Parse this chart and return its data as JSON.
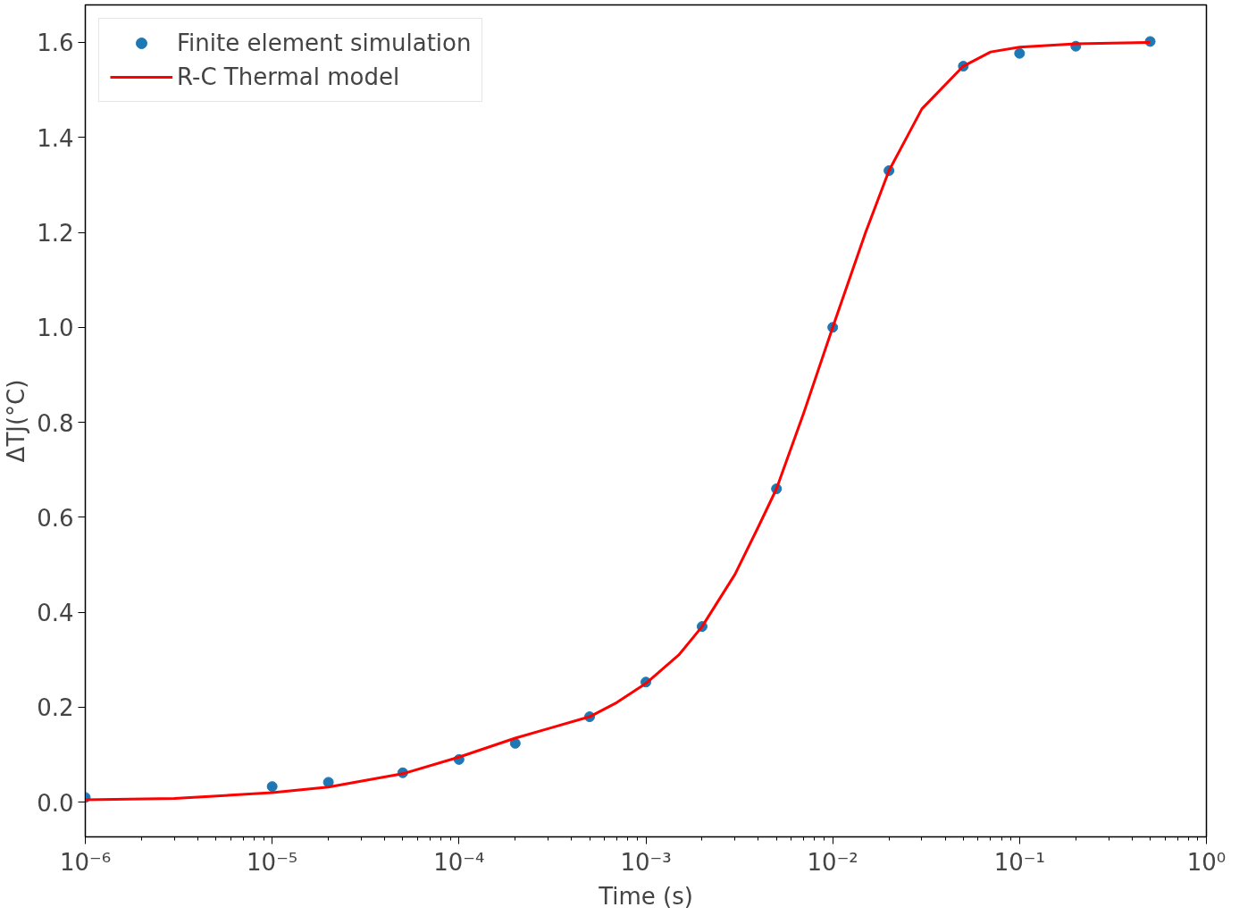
{
  "chart_data": {
    "type": "line",
    "xlabel": "Time (s)",
    "ylabel": "ΔTJ(°C)",
    "log": "x",
    "grid": false,
    "legend": "top left",
    "xlim": [
      1e-06,
      1.0
    ],
    "ylim": [
      -0.073,
      1.679
    ],
    "xticks": [
      {
        "value": 1e-06,
        "label": "10⁻⁶"
      },
      {
        "value": 1e-05,
        "label": "10⁻⁵"
      },
      {
        "value": 0.0001,
        "label": "10⁻⁴"
      },
      {
        "value": 0.001,
        "label": "10⁻³"
      },
      {
        "value": 0.01,
        "label": "10⁻²"
      },
      {
        "value": 0.1,
        "label": "10⁻¹"
      },
      {
        "value": 1.0,
        "label": "10⁰"
      }
    ],
    "yticks": [
      {
        "value": 0.0,
        "label": "0.0"
      },
      {
        "value": 0.2,
        "label": "0.2"
      },
      {
        "value": 0.4,
        "label": "0.4"
      },
      {
        "value": 0.6,
        "label": "0.6"
      },
      {
        "value": 0.8,
        "label": "0.8"
      },
      {
        "value": 1.0,
        "label": "1.0"
      },
      {
        "value": 1.2,
        "label": "1.2"
      },
      {
        "value": 1.4,
        "label": "1.4"
      },
      {
        "value": 1.6,
        "label": "1.6"
      }
    ],
    "series": [
      {
        "name": "Finite element simulation",
        "type": "scatter",
        "marker": "circle",
        "color": "#1f77b4",
        "x": [
          1e-06,
          1e-05,
          2e-05,
          5e-05,
          0.0001,
          0.0002,
          0.0005,
          0.001,
          0.002,
          0.005,
          0.01,
          0.02,
          0.05,
          0.1,
          0.2,
          0.5
        ],
        "values": [
          0.01,
          0.033,
          0.042,
          0.062,
          0.09,
          0.124,
          0.18,
          0.253,
          0.37,
          0.66,
          1.0,
          1.33,
          1.55,
          1.577,
          1.592,
          1.602
        ]
      },
      {
        "name": "R-C Thermal model",
        "line_style": "solid",
        "color": "#ff0000",
        "x": [
          1e-06,
          3e-06,
          1e-05,
          2e-05,
          5e-05,
          0.0001,
          0.0002,
          0.0003,
          0.0005,
          0.0007,
          0.001,
          0.0015,
          0.002,
          0.003,
          0.004,
          0.005,
          0.007,
          0.01,
          0.015,
          0.02,
          0.03,
          0.05,
          0.07,
          0.1,
          0.2,
          0.5
        ],
        "values": [
          0.005,
          0.008,
          0.02,
          0.032,
          0.06,
          0.095,
          0.135,
          0.155,
          0.18,
          0.21,
          0.25,
          0.31,
          0.37,
          0.48,
          0.58,
          0.66,
          0.82,
          1.0,
          1.2,
          1.33,
          1.46,
          1.55,
          1.58,
          1.59,
          1.597,
          1.6
        ]
      }
    ]
  }
}
